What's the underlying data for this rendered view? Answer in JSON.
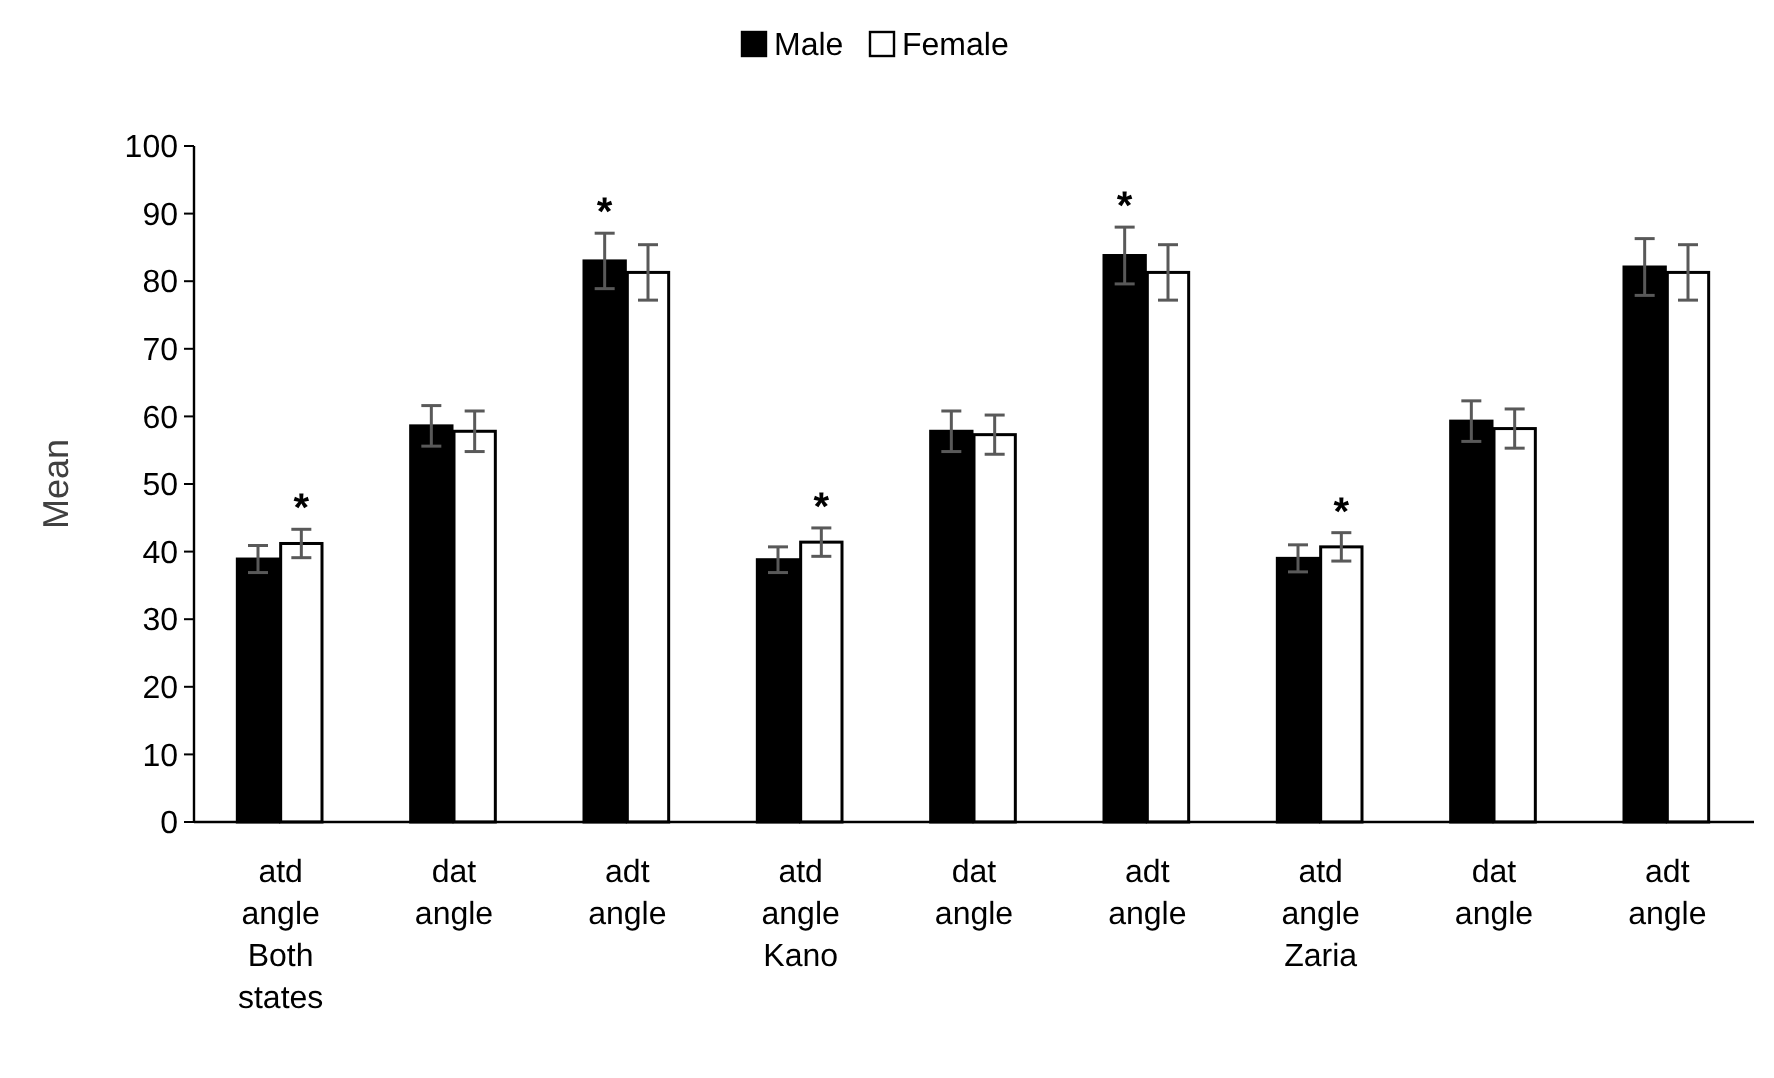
{
  "chart_data": {
    "type": "bar",
    "ylabel": "Mean",
    "categories": [
      "atd angle Both states",
      "dat angle",
      "adt angle",
      "atd angle Kano",
      "dat angle",
      "adt angle",
      "atd angle Zaria",
      "dat angle",
      "adt angle"
    ],
    "series": [
      {
        "name": "Male",
        "color": "#000000",
        "values": [
          38.9,
          58.6,
          83.0,
          38.8,
          57.8,
          83.8,
          39.0,
          59.3,
          82.1
        ],
        "errors": [
          2.0,
          3.0,
          4.1,
          1.9,
          3.0,
          4.2,
          2.0,
          3.0,
          4.2
        ],
        "value_labels": [
          null,
          null,
          "*",
          null,
          null,
          "*",
          null,
          null,
          null
        ]
      },
      {
        "name": "Female",
        "color": "#ffffff",
        "values": [
          41.2,
          57.8,
          81.3,
          41.4,
          57.3,
          81.3,
          40.7,
          58.2,
          81.3
        ],
        "errors": [
          2.1,
          3.0,
          4.1,
          2.1,
          2.9,
          4.1,
          2.1,
          2.9,
          4.1
        ],
        "value_labels": [
          "*",
          null,
          null,
          "*",
          null,
          null,
          "*",
          null,
          null
        ]
      }
    ],
    "ylim": [
      0,
      100
    ],
    "yticks": [
      0,
      10,
      20,
      30,
      40,
      50,
      60,
      70,
      80,
      90,
      100
    ],
    "grid": false,
    "legend": "top"
  }
}
